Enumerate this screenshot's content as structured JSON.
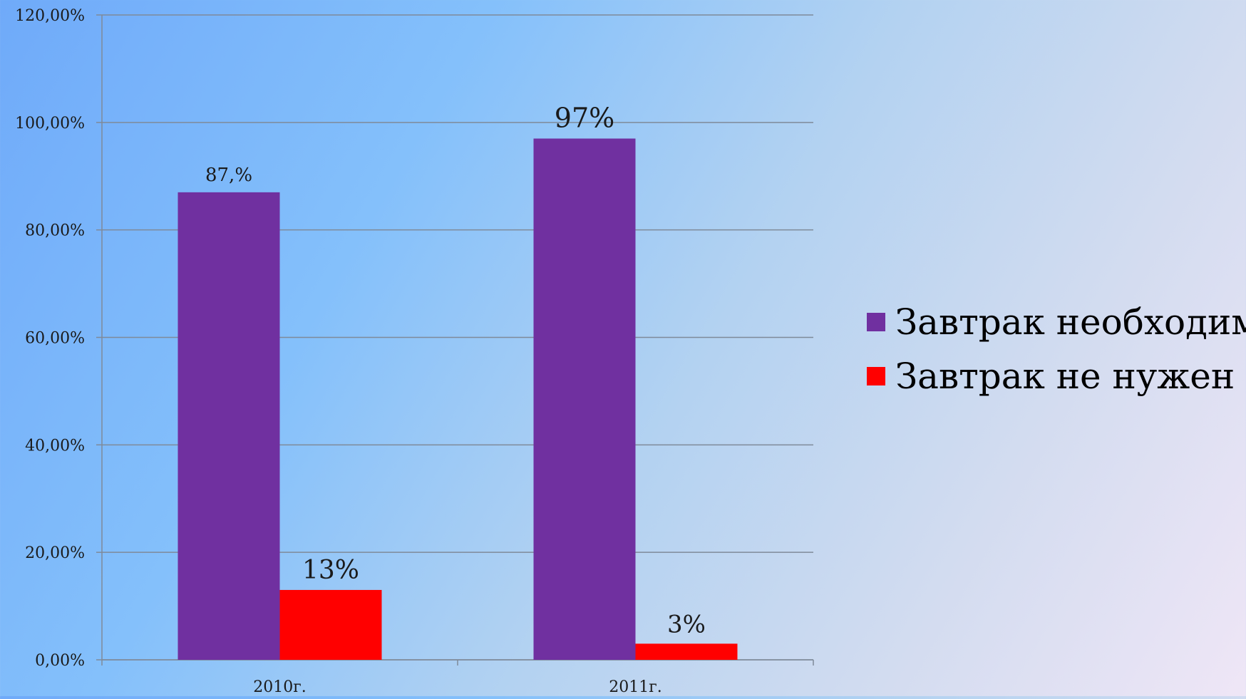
{
  "chart_data": {
    "type": "bar",
    "categories": [
      "2010г.",
      "2011г."
    ],
    "series": [
      {
        "name": "Завтрак необходим",
        "values": [
          87,
          97
        ],
        "labels": [
          "87,%",
          "97%"
        ],
        "color": "#7030a0"
      },
      {
        "name": "Завтрак не нужен",
        "values": [
          13,
          3
        ],
        "labels": [
          "13%",
          "3%"
        ],
        "color": "#ff0000"
      }
    ],
    "ylim": [
      0,
      120
    ],
    "yticks": [
      0,
      20,
      40,
      60,
      80,
      100,
      120
    ],
    "ytick_labels": [
      "0,00%",
      "20,00%",
      "40,00%",
      "60,00%",
      "80,00%",
      "100,00%",
      "120,00%"
    ],
    "grid": true,
    "legend_position": "right",
    "title": "",
    "xlabel": "",
    "ylabel": ""
  }
}
